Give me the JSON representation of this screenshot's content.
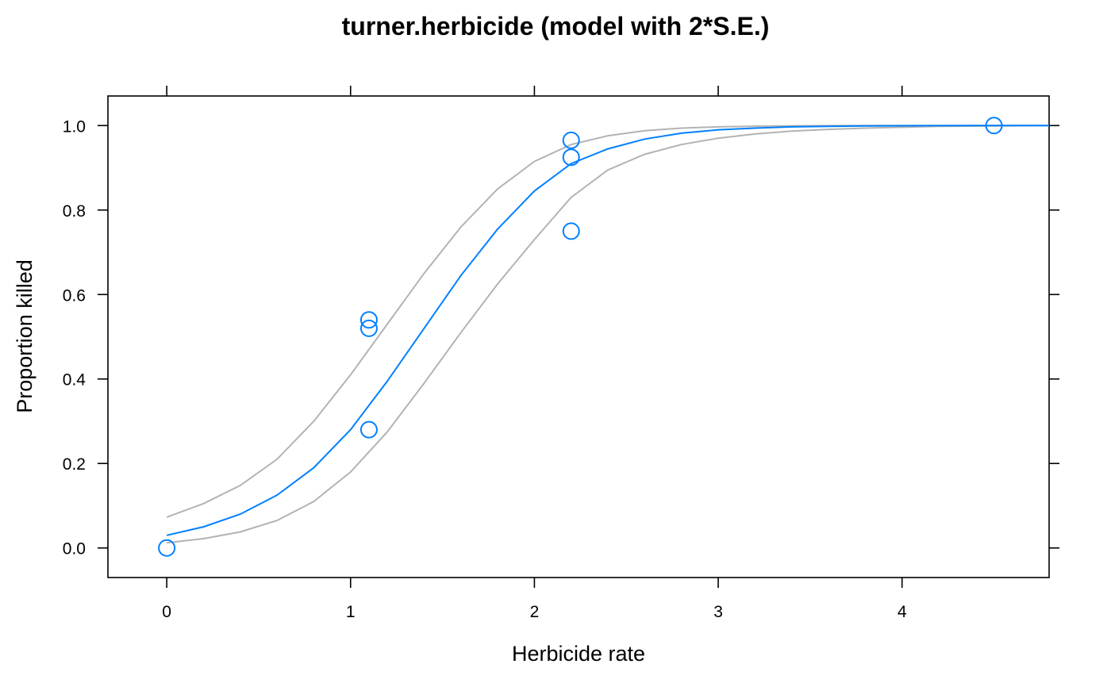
{
  "chart_data": {
    "type": "scatter",
    "title": "turner.herbicide (model with 2*S.E.)",
    "xlabel": "Herbicide rate",
    "ylabel": "Proportion killed",
    "xlim": [
      -0.32,
      4.8
    ],
    "ylim": [
      -0.07,
      1.07
    ],
    "x_ticks": [
      0,
      1,
      2,
      3,
      4
    ],
    "x_tick_labels": [
      "0",
      "1",
      "2",
      "3",
      "4"
    ],
    "y_ticks": [
      0.0,
      0.2,
      0.4,
      0.6,
      0.8,
      1.0
    ],
    "y_tick_labels": [
      "0.0",
      "0.2",
      "0.4",
      "0.6",
      "0.8",
      "1.0"
    ],
    "grid": false,
    "colors": {
      "points": "#0080ff",
      "fit": "#0080ff",
      "band": "#b3b3b3"
    },
    "points": [
      {
        "x": 0,
        "y": 0.0
      },
      {
        "x": 1.1,
        "y": 0.54
      },
      {
        "x": 1.1,
        "y": 0.52
      },
      {
        "x": 1.1,
        "y": 0.28
      },
      {
        "x": 2.2,
        "y": 0.965
      },
      {
        "x": 2.2,
        "y": 0.925
      },
      {
        "x": 2.2,
        "y": 0.75
      },
      {
        "x": 4.5,
        "y": 1.0
      }
    ],
    "fit_curve": {
      "x": [
        0,
        0.2,
        0.4,
        0.6,
        0.8,
        1.0,
        1.2,
        1.4,
        1.6,
        1.8,
        2.0,
        2.2,
        2.4,
        2.6,
        2.8,
        3.0,
        3.2,
        3.4,
        3.6,
        3.8,
        4.0,
        4.2,
        4.5,
        4.8
      ],
      "y": [
        0.03,
        0.05,
        0.08,
        0.125,
        0.19,
        0.28,
        0.395,
        0.52,
        0.645,
        0.755,
        0.845,
        0.91,
        0.945,
        0.968,
        0.982,
        0.99,
        0.994,
        0.997,
        0.998,
        0.999,
        0.9995,
        0.9998,
        1.0,
        1.0
      ]
    },
    "upper_band": {
      "x": [
        0,
        0.2,
        0.4,
        0.6,
        0.8,
        1.0,
        1.2,
        1.4,
        1.6,
        1.8,
        2.0,
        2.2,
        2.4,
        2.6,
        2.8,
        3.0,
        3.2,
        3.4,
        3.6,
        3.8,
        4.0,
        4.2,
        4.5,
        4.8
      ],
      "y": [
        0.073,
        0.105,
        0.148,
        0.21,
        0.3,
        0.41,
        0.53,
        0.65,
        0.76,
        0.85,
        0.915,
        0.955,
        0.976,
        0.988,
        0.994,
        0.997,
        0.9985,
        0.9993,
        0.9997,
        0.9999,
        1.0,
        1.0,
        1.0,
        1.0
      ]
    },
    "lower_band": {
      "x": [
        0,
        0.2,
        0.4,
        0.6,
        0.8,
        1.0,
        1.2,
        1.4,
        1.6,
        1.8,
        2.0,
        2.2,
        2.4,
        2.6,
        2.8,
        3.0,
        3.2,
        3.4,
        3.6,
        3.8,
        4.0,
        4.2,
        4.5,
        4.8
      ],
      "y": [
        0.012,
        0.022,
        0.038,
        0.065,
        0.11,
        0.18,
        0.275,
        0.39,
        0.51,
        0.625,
        0.73,
        0.83,
        0.895,
        0.932,
        0.955,
        0.97,
        0.98,
        0.987,
        0.991,
        0.994,
        0.996,
        0.998,
        0.999,
        1.0
      ]
    }
  }
}
